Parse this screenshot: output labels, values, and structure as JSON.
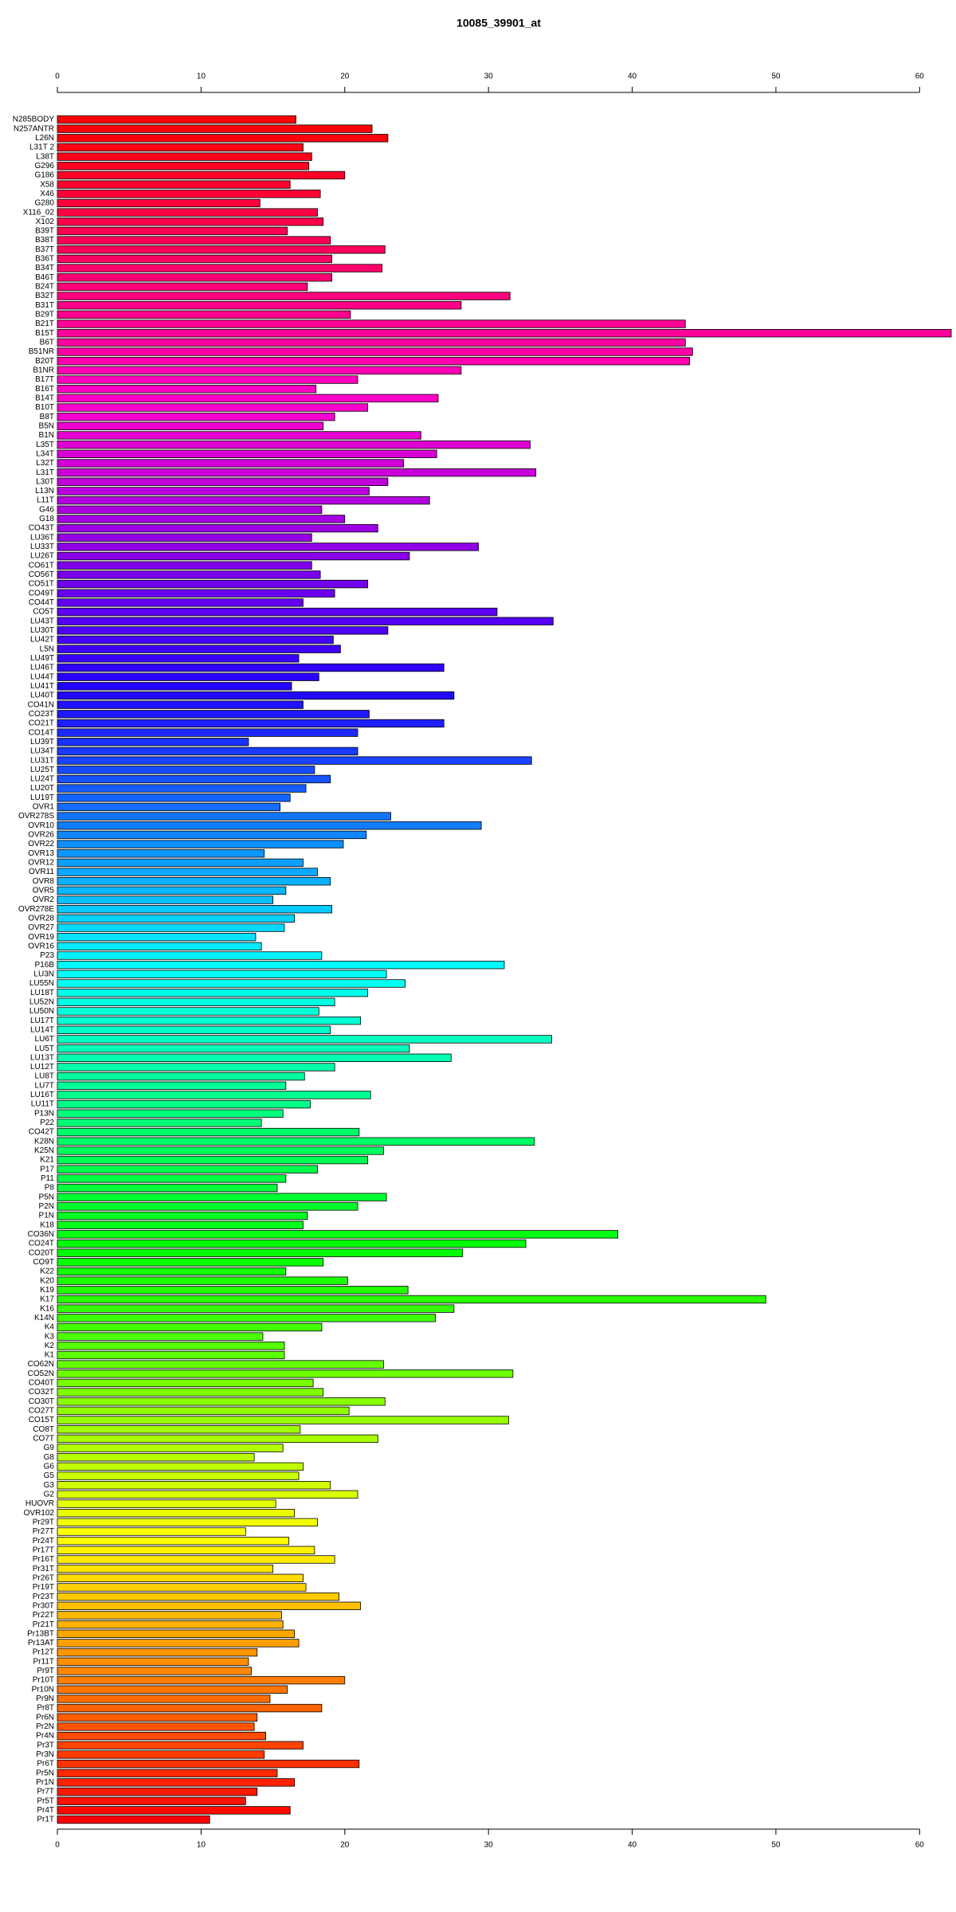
{
  "chart_data": {
    "type": "bar",
    "orientation": "horizontal",
    "title": "10085_39901_at",
    "categories": [
      "N285BODY",
      "N257ANTR",
      "L26N",
      "L31T 2",
      "L38T",
      "G296",
      "G186",
      "X58",
      "X46",
      "G280",
      "X116_02",
      "X102",
      "B39T",
      "B38T",
      "B37T",
      "B36T",
      "B34T",
      "B46T",
      "B24T",
      "B32T",
      "B31T",
      "B29T",
      "B21T",
      "B15T",
      "B6T",
      "B51NR",
      "B20T",
      "B1NR",
      "B17T",
      "B16T",
      "B14T",
      "B10T",
      "B8T",
      "B5N",
      "B1N",
      "L35T",
      "L34T",
      "L32T",
      "L31T",
      "L30T",
      "L13N",
      "L11T",
      "G46",
      "G18",
      "CO43T",
      "LU36T",
      "LU33T",
      "LU26T",
      "CO61T",
      "CO56T",
      "CO51T",
      "CO49T",
      "CO44T",
      "CO5T",
      "LU43T",
      "LU30T",
      "LU42T",
      "L5N",
      "LU49T",
      "LU46T",
      "LU44T",
      "LU41T",
      "LU40T",
      "CO41N",
      "CO23T",
      "CO21T",
      "CO14T",
      "LU39T",
      "LU34T",
      "LU31T",
      "LU25T",
      "LU24T",
      "LU20T",
      "LU19T",
      "OVR1",
      "OVR278S",
      "OVR10",
      "OVR26",
      "OVR22",
      "OVR13",
      "OVR12",
      "OVR11",
      "OVR8",
      "OVR5",
      "OVR2",
      "OVR278E",
      "OVR28",
      "OVR27",
      "OVR19",
      "OVR16",
      "P23",
      "P16B",
      "LU3N",
      "LU55N",
      "LU18T",
      "LU52N",
      "LU50N",
      "LU17T",
      "LU14T",
      "LU6T",
      "LU5T",
      "LU13T",
      "LU12T",
      "LU8T",
      "LU7T",
      "LU16T",
      "LU11T",
      "P13N",
      "P22",
      "CO42T",
      "K28N",
      "K25N",
      "K21",
      "P17",
      "P11",
      "P8",
      "P5N",
      "P2N",
      "P1N",
      "K18",
      "CO36N",
      "CO24T",
      "CO20T",
      "CO9T",
      "K22",
      "K20",
      "K19",
      "K17",
      "K16",
      "K14N",
      "K4",
      "K3",
      "K2",
      "K1",
      "CO62N",
      "CO52N",
      "CO40T",
      "CO32T",
      "CO30T",
      "CO27T",
      "CO15T",
      "CO8T",
      "CO7T",
      "G9",
      "G8",
      "G6",
      "G5",
      "G3",
      "G2",
      "HUOVR",
      "OVR102",
      "Pr29T",
      "Pr27T",
      "Pr24T",
      "Pr17T",
      "Pr16T",
      "Pr31T",
      "Pr26T",
      "Pr19T",
      "Pr23T",
      "Pr30T",
      "Pr22T",
      "Pr21T",
      "Pr13BT",
      "Pr13AT",
      "Pr12T",
      "Pr11T",
      "Pr9T",
      "Pr10T",
      "Pr10N",
      "Pr9N",
      "Pr8T",
      "Pr6N",
      "Pr2N",
      "Pr4N",
      "Pr3T",
      "Pr3N",
      "Pr6T",
      "Pr5N",
      "Pr1N",
      "Pr7T",
      "Pr5T",
      "Pr4T",
      "Pr1T"
    ],
    "values": [
      16.6,
      21.9,
      23.0,
      17.1,
      17.7,
      17.5,
      20.0,
      16.2,
      18.3,
      14.1,
      18.1,
      18.5,
      16.0,
      19.0,
      22.8,
      19.1,
      22.6,
      19.1,
      17.4,
      31.5,
      28.1,
      20.4,
      43.7,
      62.2,
      43.7,
      44.2,
      44.0,
      28.1,
      20.9,
      18.0,
      26.5,
      21.6,
      19.3,
      18.5,
      25.3,
      32.9,
      26.4,
      24.1,
      33.3,
      23.0,
      21.7,
      25.9,
      18.4,
      20.0,
      22.3,
      17.7,
      29.3,
      24.5,
      17.7,
      18.3,
      21.6,
      19.3,
      17.1,
      30.6,
      34.5,
      23.0,
      19.2,
      19.7,
      16.8,
      26.9,
      18.2,
      16.3,
      27.6,
      17.1,
      21.7,
      26.9,
      20.9,
      13.3,
      20.9,
      33.0,
      17.9,
      19.0,
      17.3,
      16.2,
      15.5,
      23.2,
      29.5,
      21.5,
      19.9,
      14.4,
      17.1,
      18.1,
      19.0,
      15.9,
      15.0,
      19.1,
      16.5,
      15.8,
      13.8,
      14.2,
      18.4,
      31.1,
      22.9,
      24.2,
      21.6,
      19.3,
      18.2,
      21.1,
      19.0,
      34.4,
      24.5,
      27.4,
      19.3,
      17.2,
      15.9,
      21.8,
      17.6,
      15.7,
      14.2,
      21.0,
      33.2,
      22.7,
      21.6,
      18.1,
      15.9,
      15.3,
      22.9,
      20.9,
      17.4,
      17.1,
      39.0,
      32.6,
      28.2,
      18.5,
      15.9,
      20.2,
      24.4,
      49.3,
      27.6,
      26.3,
      18.4,
      14.3,
      15.8,
      15.8,
      22.7,
      31.7,
      17.8,
      18.5,
      22.8,
      20.3,
      31.4,
      16.9,
      22.3,
      15.7,
      13.7,
      17.1,
      16.8,
      19.0,
      20.9,
      15.2,
      16.5,
      18.1,
      13.1,
      16.1,
      17.9,
      19.3,
      15.0,
      17.1,
      17.3,
      19.6,
      21.1,
      15.6,
      15.7,
      16.5,
      16.8,
      13.9,
      13.3,
      13.5,
      20.0,
      16.0,
      14.8,
      18.4,
      13.9,
      13.7,
      14.5,
      17.1,
      14.4,
      21.0,
      15.3,
      16.5,
      13.9,
      13.1,
      16.2,
      10.6
    ],
    "xlim": [
      0,
      62.2
    ],
    "xticks": [
      0,
      10,
      20,
      30,
      40,
      50,
      60
    ],
    "palette": [
      "#ff0000",
      "#ff00cc",
      "#2200ff",
      "#00ffff",
      "#00ff00",
      "#ffff00",
      "#ff0000"
    ]
  }
}
